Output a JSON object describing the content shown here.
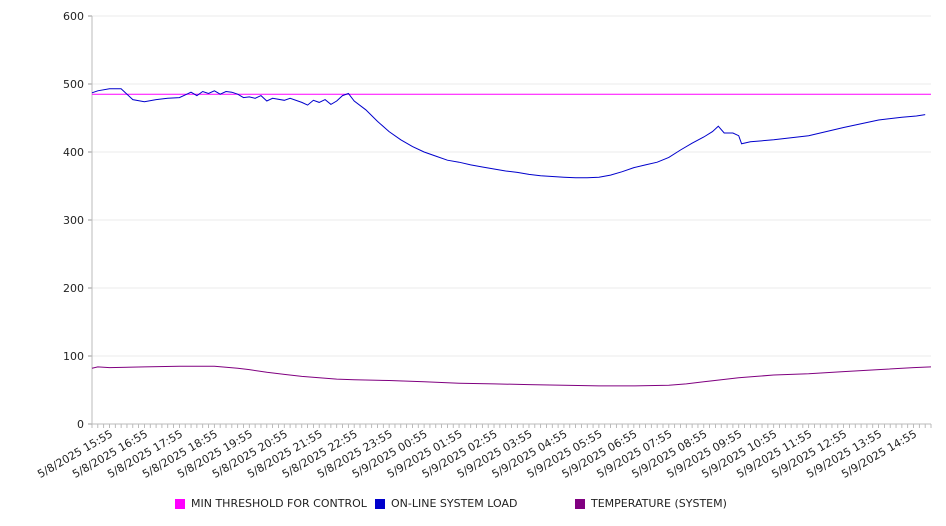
{
  "chart_data": {
    "type": "line",
    "ylim": [
      0,
      600
    ],
    "yticks": [
      0,
      100,
      200,
      300,
      400,
      500,
      600
    ],
    "x_range": [
      "5/8/2025 15:25",
      "5/9/2025 15:25"
    ],
    "x_tick_labels": [
      "5/8/2025 15:55",
      "5/8/2025 16:55",
      "5/8/2025 17:55",
      "5/8/2025 18:55",
      "5/8/2025 19:55",
      "5/8/2025 20:55",
      "5/8/2025 21:55",
      "5/8/2025 22:55",
      "5/8/2025 23:55",
      "5/9/2025 00:55",
      "5/9/2025 01:55",
      "5/9/2025 02:55",
      "5/9/2025 03:55",
      "5/9/2025 04:55",
      "5/9/2025 05:55",
      "5/9/2025 06:55",
      "5/9/2025 07:55",
      "5/9/2025 08:55",
      "5/9/2025 09:55",
      "5/9/2025 10:55",
      "5/9/2025 11:55",
      "5/9/2025 12:55",
      "5/9/2025 13:55",
      "5/9/2025 14:55"
    ],
    "grid": true,
    "legend_position": "bottom",
    "series": [
      {
        "name": "MIN THRESHOLD FOR CONTROL",
        "color": "#ff00ff",
        "points": [
          [
            "5/8/2025 15:25",
            485
          ],
          [
            "5/9/2025 15:25",
            485
          ]
        ]
      },
      {
        "name": "ON-LINE SYSTEM LOAD",
        "color": "#0000cc",
        "points": [
          [
            "5/8/2025 15:25",
            487
          ],
          [
            "5/8/2025 15:35",
            490
          ],
          [
            "5/8/2025 15:55",
            493
          ],
          [
            "5/8/2025 16:15",
            493
          ],
          [
            "5/8/2025 16:25",
            485
          ],
          [
            "5/8/2025 16:35",
            477
          ],
          [
            "5/8/2025 16:55",
            474
          ],
          [
            "5/8/2025 17:15",
            477
          ],
          [
            "5/8/2025 17:35",
            479
          ],
          [
            "5/8/2025 17:55",
            480
          ],
          [
            "5/8/2025 18:05",
            484
          ],
          [
            "5/8/2025 18:15",
            488
          ],
          [
            "5/8/2025 18:25",
            483
          ],
          [
            "5/8/2025 18:35",
            489
          ],
          [
            "5/8/2025 18:45",
            486
          ],
          [
            "5/8/2025 18:55",
            490
          ],
          [
            "5/8/2025 19:05",
            485
          ],
          [
            "5/8/2025 19:15",
            489
          ],
          [
            "5/8/2025 19:25",
            488
          ],
          [
            "5/8/2025 19:35",
            485
          ],
          [
            "5/8/2025 19:45",
            480
          ],
          [
            "5/8/2025 19:55",
            481
          ],
          [
            "5/8/2025 20:05",
            479
          ],
          [
            "5/8/2025 20:15",
            483
          ],
          [
            "5/8/2025 20:25",
            475
          ],
          [
            "5/8/2025 20:35",
            479
          ],
          [
            "5/8/2025 20:55",
            476
          ],
          [
            "5/8/2025 21:05",
            479
          ],
          [
            "5/8/2025 21:25",
            473
          ],
          [
            "5/8/2025 21:35",
            469
          ],
          [
            "5/8/2025 21:45",
            476
          ],
          [
            "5/8/2025 21:55",
            473
          ],
          [
            "5/8/2025 22:05",
            477
          ],
          [
            "5/8/2025 22:15",
            470
          ],
          [
            "5/8/2025 22:25",
            475
          ],
          [
            "5/8/2025 22:35",
            483
          ],
          [
            "5/8/2025 22:45",
            486
          ],
          [
            "5/8/2025 22:55",
            475
          ],
          [
            "5/8/2025 23:15",
            462
          ],
          [
            "5/8/2025 23:35",
            445
          ],
          [
            "5/8/2025 23:55",
            430
          ],
          [
            "5/9/2025 00:15",
            418
          ],
          [
            "5/9/2025 00:35",
            408
          ],
          [
            "5/9/2025 00:55",
            400
          ],
          [
            "5/9/2025 01:15",
            394
          ],
          [
            "5/9/2025 01:35",
            388
          ],
          [
            "5/9/2025 01:55",
            385
          ],
          [
            "5/9/2025 02:15",
            381
          ],
          [
            "5/9/2025 02:35",
            378
          ],
          [
            "5/9/2025 02:55",
            375
          ],
          [
            "5/9/2025 03:15",
            372
          ],
          [
            "5/9/2025 03:35",
            370
          ],
          [
            "5/9/2025 03:55",
            367
          ],
          [
            "5/9/2025 04:15",
            365
          ],
          [
            "5/9/2025 04:35",
            364
          ],
          [
            "5/9/2025 04:55",
            363
          ],
          [
            "5/9/2025 05:15",
            362
          ],
          [
            "5/9/2025 05:35",
            362
          ],
          [
            "5/9/2025 05:55",
            363
          ],
          [
            "5/9/2025 06:15",
            366
          ],
          [
            "5/9/2025 06:35",
            371
          ],
          [
            "5/9/2025 06:55",
            377
          ],
          [
            "5/9/2025 07:15",
            381
          ],
          [
            "5/9/2025 07:35",
            385
          ],
          [
            "5/9/2025 07:55",
            392
          ],
          [
            "5/9/2025 08:15",
            403
          ],
          [
            "5/9/2025 08:35",
            413
          ],
          [
            "5/9/2025 08:55",
            422
          ],
          [
            "5/9/2025 09:10",
            430
          ],
          [
            "5/9/2025 09:20",
            438
          ],
          [
            "5/9/2025 09:30",
            428
          ],
          [
            "5/9/2025 09:45",
            428
          ],
          [
            "5/9/2025 09:55",
            424
          ],
          [
            "5/9/2025 10:00",
            412
          ],
          [
            "5/9/2025 10:15",
            415
          ],
          [
            "5/9/2025 10:55",
            418
          ],
          [
            "5/9/2025 11:55",
            424
          ],
          [
            "5/9/2025 12:55",
            436
          ],
          [
            "5/9/2025 13:55",
            447
          ],
          [
            "5/9/2025 14:35",
            451
          ],
          [
            "5/9/2025 15:00",
            453
          ],
          [
            "5/9/2025 15:15",
            455
          ]
        ]
      },
      {
        "name": "TEMPERATURE (SYSTEM)",
        "color": "#800080",
        "points": [
          [
            "5/8/2025 15:25",
            82
          ],
          [
            "5/8/2025 15:35",
            84
          ],
          [
            "5/8/2025 15:55",
            83
          ],
          [
            "5/8/2025 16:55",
            84
          ],
          [
            "5/8/2025 17:55",
            85
          ],
          [
            "5/8/2025 18:55",
            85
          ],
          [
            "5/8/2025 19:35",
            82
          ],
          [
            "5/8/2025 19:55",
            80
          ],
          [
            "5/8/2025 20:25",
            76
          ],
          [
            "5/8/2025 20:55",
            73
          ],
          [
            "5/8/2025 21:25",
            70
          ],
          [
            "5/8/2025 21:55",
            68
          ],
          [
            "5/8/2025 22:25",
            66
          ],
          [
            "5/8/2025 22:55",
            65
          ],
          [
            "5/8/2025 23:55",
            64
          ],
          [
            "5/9/2025 00:55",
            62
          ],
          [
            "5/9/2025 01:55",
            60
          ],
          [
            "5/9/2025 02:55",
            59
          ],
          [
            "5/9/2025 03:55",
            58
          ],
          [
            "5/9/2025 04:55",
            57
          ],
          [
            "5/9/2025 05:55",
            56
          ],
          [
            "5/9/2025 06:55",
            56
          ],
          [
            "5/9/2025 07:55",
            57
          ],
          [
            "5/9/2025 08:25",
            59
          ],
          [
            "5/9/2025 08:55",
            62
          ],
          [
            "5/9/2025 09:25",
            65
          ],
          [
            "5/9/2025 09:55",
            68
          ],
          [
            "5/9/2025 10:25",
            70
          ],
          [
            "5/9/2025 10:55",
            72
          ],
          [
            "5/9/2025 11:55",
            74
          ],
          [
            "5/9/2025 12:55",
            77
          ],
          [
            "5/9/2025 13:55",
            80
          ],
          [
            "5/9/2025 14:55",
            83
          ],
          [
            "5/9/2025 15:25",
            84
          ]
        ]
      }
    ]
  }
}
